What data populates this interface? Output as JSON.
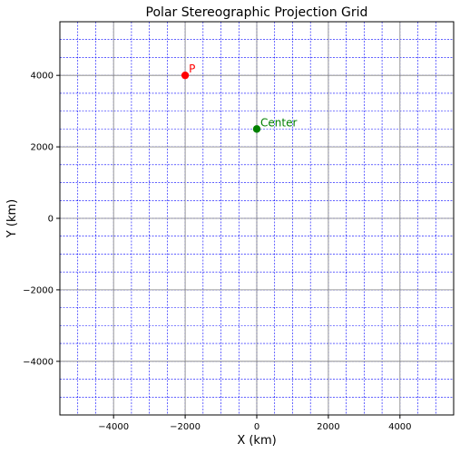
{
  "chart_data": {
    "type": "scatter",
    "title": "Polar Stereographic Projection Grid",
    "xlabel": "X (km)",
    "ylabel": "Y (km)",
    "xlim": [
      -5500,
      5500
    ],
    "ylim": [
      -5500,
      5500
    ],
    "grid": true,
    "grid_step": 500,
    "grid_color": "#0000ff",
    "axis_line_color": "#808080",
    "xticks": [
      -4000,
      -2000,
      0,
      2000,
      4000
    ],
    "yticks": [
      -4000,
      -2000,
      0,
      2000,
      4000
    ],
    "xtick_labels": [
      "−4000",
      "−2000",
      "0",
      "2000",
      "4000"
    ],
    "ytick_labels": [
      "−4000",
      "−2000",
      "0",
      "2000",
      "4000"
    ],
    "points": [
      {
        "label": "P",
        "x": -2000,
        "y": 4000,
        "color": "#ff0000"
      },
      {
        "label": "Center",
        "x": 0,
        "y": 2500,
        "color": "#008000"
      }
    ]
  }
}
